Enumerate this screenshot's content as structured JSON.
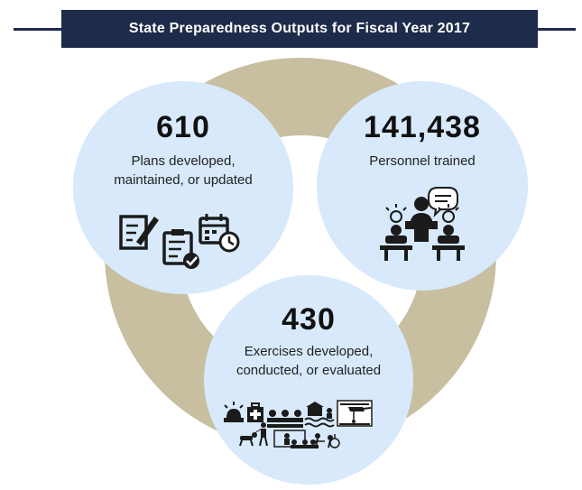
{
  "header": {
    "title": "State Preparedness Outputs for Fiscal Year 2017"
  },
  "outputs": [
    {
      "value": "610",
      "label_lines": [
        "Plans developed,",
        "maintained, or updated"
      ],
      "icons": [
        "document-edit-icon",
        "clipboard-checklist-icon",
        "calendar-clock-icon"
      ]
    },
    {
      "value": "141,438",
      "label_lines": [
        "Personnel trained"
      ],
      "icons": [
        "classroom-instructor-icon",
        "trainee-idea-icon"
      ]
    },
    {
      "value": "430",
      "label_lines": [
        "Exercises developed,",
        "conducted, or evaluated"
      ],
      "icons": [
        "emergency-response-icons"
      ]
    }
  ],
  "colors": {
    "banner": "#1e2b4a",
    "ring": "#c8bea0",
    "bubble": "#d7e9fa"
  }
}
